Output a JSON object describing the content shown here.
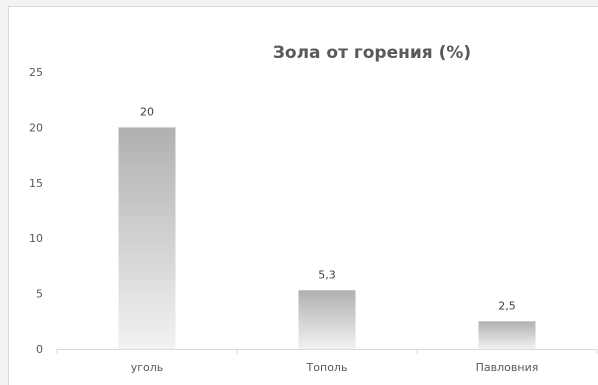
{
  "chart_data": {
    "type": "bar",
    "title": "Зола от горения (%)",
    "xlabel": "",
    "ylabel": "",
    "categories": [
      "уголь",
      "Тополь",
      "Павловния"
    ],
    "values": [
      20,
      5.3,
      2.5
    ],
    "data_labels": [
      "20",
      "5,3",
      "2,5"
    ],
    "y_ticks": [
      0,
      5,
      10,
      15,
      20,
      25
    ],
    "ylim": [
      0,
      25
    ],
    "grid": false,
    "legend": "none",
    "colors": {
      "bar_top": "#b0b0b0",
      "bar_bottom": "#f2f2f2",
      "text": "#595959",
      "axis": "#d9d9d9"
    }
  }
}
